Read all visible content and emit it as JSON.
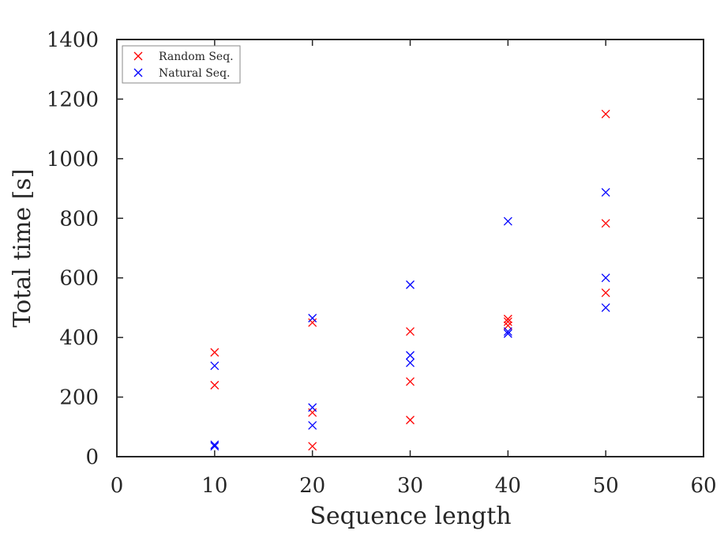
{
  "chart_data": {
    "type": "scatter",
    "xlabel": "Sequence length",
    "ylabel": "Total time [s]",
    "xlim": [
      0,
      60
    ],
    "ylim": [
      0,
      1400
    ],
    "xticks": [
      "0",
      "10",
      "20",
      "30",
      "40",
      "50",
      "60"
    ],
    "yticks": [
      "0",
      "200",
      "400",
      "600",
      "800",
      "1000",
      "1200",
      "1400"
    ],
    "grid": false,
    "legend_position": "top-left",
    "marker": "x",
    "series": [
      {
        "name": "Random Seq.",
        "color": "#ff0000",
        "points": [
          {
            "x": 10,
            "y": 350
          },
          {
            "x": 10,
            "y": 240
          },
          {
            "x": 20,
            "y": 450
          },
          {
            "x": 20,
            "y": 148
          },
          {
            "x": 20,
            "y": 35
          },
          {
            "x": 30,
            "y": 420
          },
          {
            "x": 30,
            "y": 252
          },
          {
            "x": 30,
            "y": 123
          },
          {
            "x": 40,
            "y": 462
          },
          {
            "x": 40,
            "y": 453
          },
          {
            "x": 40,
            "y": 440
          },
          {
            "x": 50,
            "y": 1150
          },
          {
            "x": 50,
            "y": 783
          },
          {
            "x": 50,
            "y": 550
          }
        ]
      },
      {
        "name": "Natural Seq.",
        "color": "#0000ff",
        "points": [
          {
            "x": 10,
            "y": 305
          },
          {
            "x": 10,
            "y": 40
          },
          {
            "x": 10,
            "y": 35
          },
          {
            "x": 20,
            "y": 465
          },
          {
            "x": 20,
            "y": 165
          },
          {
            "x": 20,
            "y": 105
          },
          {
            "x": 30,
            "y": 577
          },
          {
            "x": 30,
            "y": 340
          },
          {
            "x": 30,
            "y": 315
          },
          {
            "x": 40,
            "y": 790
          },
          {
            "x": 40,
            "y": 420
          },
          {
            "x": 40,
            "y": 413
          },
          {
            "x": 50,
            "y": 887
          },
          {
            "x": 50,
            "y": 600
          },
          {
            "x": 50,
            "y": 500
          }
        ]
      }
    ]
  }
}
